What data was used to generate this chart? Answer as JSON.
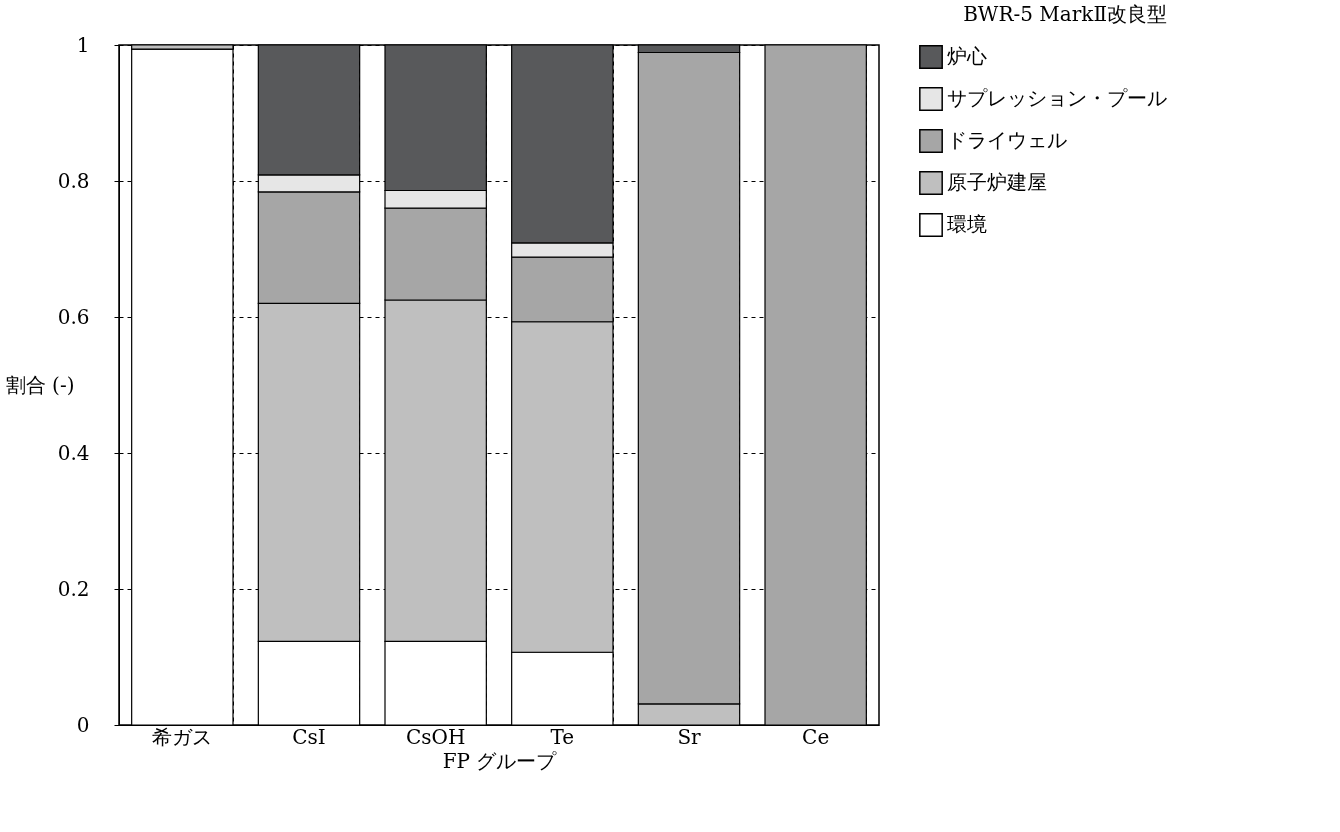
{
  "chart_data": {
    "type": "bar",
    "stacked": true,
    "title": "BWR-5 MarkⅡ改良型",
    "xlabel": "FP グループ",
    "ylabel": "割合 (-)",
    "categories": [
      "希ガス",
      "CsI",
      "CsOH",
      "Te",
      "Sr",
      "Ce"
    ],
    "series": [
      {
        "name": "環境",
        "color": "#ffffff",
        "values": [
          0.994,
          0.123,
          0.123,
          0.107,
          0,
          0
        ]
      },
      {
        "name": "原子炉建屋",
        "color": "#bfbfbf",
        "values": [
          0.006,
          0.497,
          0.502,
          0.486,
          0.031,
          0
        ]
      },
      {
        "name": "ドライウェル",
        "color": "#a6a6a6",
        "values": [
          0,
          0.164,
          0.135,
          0.095,
          0.958,
          1.0
        ]
      },
      {
        "name": "サプレッション・プール",
        "color": "#e6e6e6",
        "values": [
          0,
          0.025,
          0.026,
          0.021,
          0,
          0
        ]
      },
      {
        "name": "炉心",
        "color": "#58595b",
        "values": [
          0,
          0.191,
          0.214,
          0.291,
          0.011,
          0
        ]
      }
    ],
    "ylim": [
      0,
      1
    ],
    "yticks": [
      0,
      0.2,
      0.4,
      0.6,
      0.8,
      1
    ],
    "grid": true,
    "legend": "top right"
  }
}
